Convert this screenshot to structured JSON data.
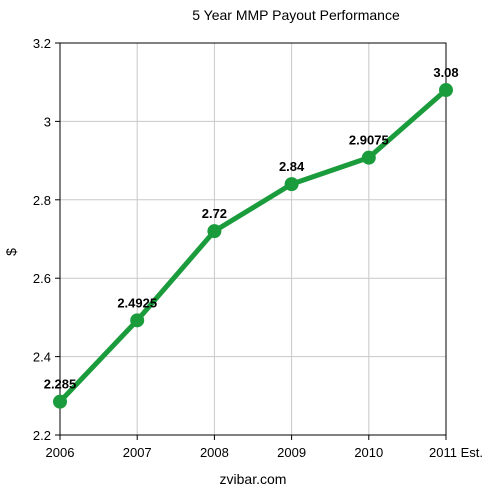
{
  "chart_data": {
    "type": "line",
    "title": "5 Year MMP Payout Performance",
    "xlabel": "zvibar.com",
    "ylabel": "$",
    "categories": [
      "2006",
      "2007",
      "2008",
      "2009",
      "2010",
      "2011 Est."
    ],
    "values": [
      2.285,
      2.4925,
      2.72,
      2.84,
      2.9075,
      3.08
    ],
    "data_labels": [
      "2.285",
      "2.4925",
      "2.72",
      "2.84",
      "2.9075",
      "3.08"
    ],
    "ylim": [
      2.2,
      3.2
    ],
    "yticks": [
      2.2,
      2.4,
      2.6,
      2.8,
      3,
      3.2
    ],
    "ytick_labels": [
      "2.2",
      "2.4",
      "2.6",
      "2.8",
      "3",
      "3.2"
    ],
    "grid": true,
    "series_color": "#1a9c3c"
  }
}
